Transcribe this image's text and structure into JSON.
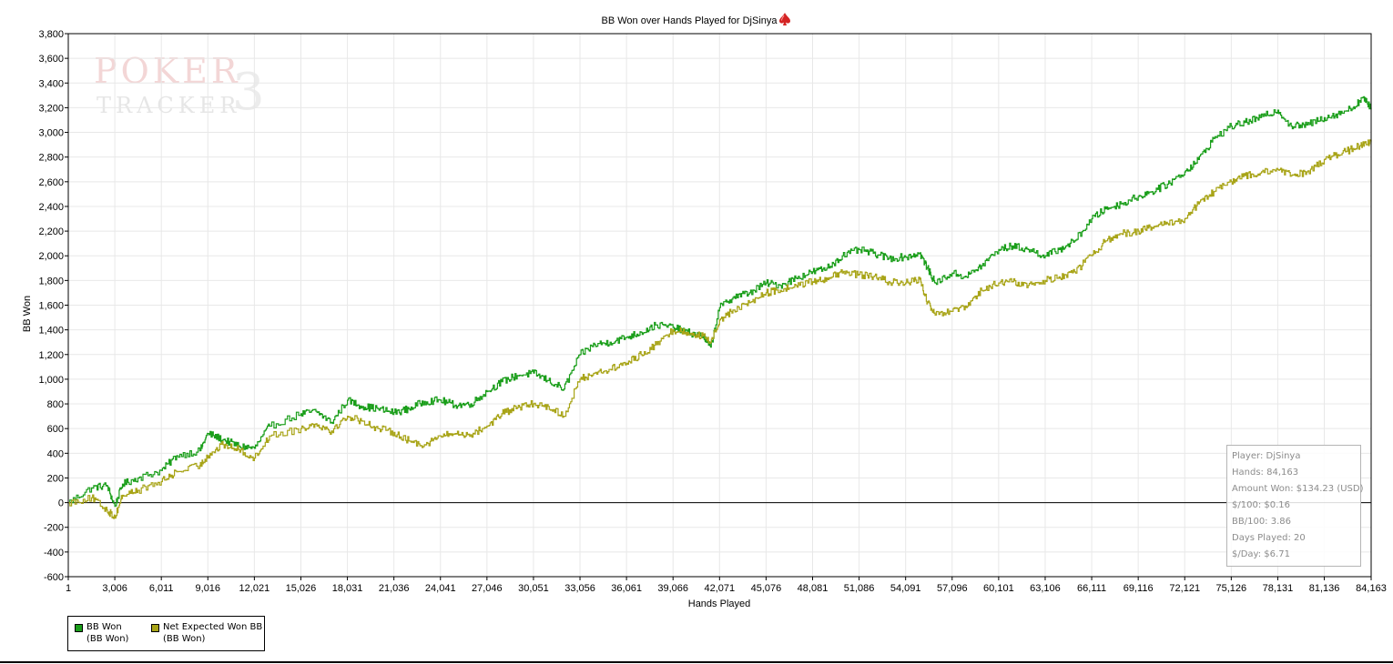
{
  "chart_data": {
    "type": "line",
    "title": "BB Won over Hands Played for DjSinya",
    "title_icon": "red-spade-icon",
    "xlabel": "Hands Played",
    "ylabel": "BB Won",
    "xlim": [
      1,
      84163
    ],
    "ylim": [
      -600,
      3800
    ],
    "x_ticks": [
      "1",
      "3,006",
      "6,011",
      "9,016",
      "12,021",
      "15,026",
      "18,031",
      "21,036",
      "24,041",
      "27,046",
      "30,051",
      "33,056",
      "36,061",
      "39,066",
      "42,071",
      "45,076",
      "48,081",
      "51,086",
      "54,091",
      "57,096",
      "60,101",
      "63,106",
      "66,111",
      "69,116",
      "72,121",
      "75,126",
      "78,131",
      "81,136",
      "84,163"
    ],
    "y_ticks": [
      "-600",
      "-400",
      "-200",
      "0",
      "200",
      "400",
      "600",
      "800",
      "1,000",
      "1,200",
      "1,400",
      "1,600",
      "1,800",
      "2,000",
      "2,200",
      "2,400",
      "2,600",
      "2,800",
      "3,000",
      "3,200",
      "3,400",
      "3,600",
      "3,800"
    ],
    "grid": true,
    "legend_position": "bottom-left",
    "series": [
      {
        "name": "BB Won",
        "unit": "(BB Won)",
        "color": "#1a9e1a",
        "x": [
          1,
          1500,
          2500,
          3006,
          3500,
          4500,
          6011,
          7000,
          8500,
          9016,
          10000,
          11000,
          12021,
          13000,
          15026,
          16000,
          17000,
          18031,
          19000,
          20000,
          21036,
          22000,
          23000,
          24041,
          25000,
          26000,
          27046,
          28000,
          29000,
          30051,
          31000,
          32000,
          33056,
          34000,
          35000,
          36061,
          37000,
          38000,
          39066,
          40000,
          41000,
          41500,
          42071,
          43000,
          44000,
          45076,
          46000,
          47000,
          48081,
          49000,
          50000,
          51086,
          52000,
          53000,
          54091,
          55000,
          55500,
          56000,
          57096,
          58000,
          59000,
          60101,
          61000,
          62000,
          63106,
          64000,
          65000,
          66111,
          67000,
          68000,
          69116,
          70000,
          71000,
          72121,
          73000,
          74000,
          75126,
          76000,
          77000,
          78131,
          79000,
          80000,
          81136,
          82000,
          83000,
          83600,
          84163
        ],
        "values": [
          0,
          120,
          140,
          -30,
          150,
          200,
          260,
          380,
          420,
          560,
          510,
          460,
          440,
          620,
          720,
          740,
          650,
          830,
          780,
          760,
          730,
          760,
          820,
          830,
          790,
          800,
          900,
          980,
          1030,
          1050,
          990,
          920,
          1200,
          1280,
          1300,
          1340,
          1380,
          1440,
          1420,
          1380,
          1350,
          1260,
          1580,
          1670,
          1700,
          1780,
          1760,
          1820,
          1870,
          1900,
          2000,
          2050,
          2020,
          1980,
          1990,
          2020,
          1900,
          1780,
          1860,
          1830,
          1920,
          2050,
          2080,
          2050,
          2000,
          2050,
          2120,
          2300,
          2380,
          2420,
          2480,
          2520,
          2580,
          2680,
          2780,
          2950,
          3050,
          3080,
          3120,
          3180,
          3050,
          3060,
          3120,
          3150,
          3200,
          3280,
          3200
        ]
      },
      {
        "name": "Net Expected Won BB",
        "unit": "(BB Won)",
        "color": "#a8a417",
        "x": [
          1,
          1500,
          2500,
          3006,
          3500,
          4500,
          6011,
          7000,
          8500,
          9016,
          10000,
          11000,
          12021,
          13000,
          15026,
          16000,
          17000,
          18031,
          19000,
          20000,
          21036,
          22000,
          23000,
          24041,
          25000,
          26000,
          27046,
          28000,
          29000,
          30051,
          31000,
          32000,
          33056,
          34000,
          35000,
          36061,
          37000,
          38000,
          39066,
          40000,
          41000,
          41500,
          42071,
          43000,
          44000,
          45076,
          46000,
          47000,
          48081,
          49000,
          50000,
          51086,
          52000,
          53000,
          54091,
          55000,
          55500,
          56000,
          57096,
          58000,
          59000,
          60101,
          61000,
          62000,
          63106,
          64000,
          65000,
          66111,
          67000,
          68000,
          69116,
          70000,
          71000,
          72121,
          73000,
          74000,
          75126,
          76000,
          77000,
          78131,
          79000,
          80000,
          81136,
          82000,
          83000,
          83600,
          84163
        ],
        "values": [
          0,
          40,
          -60,
          -120,
          60,
          100,
          170,
          250,
          300,
          380,
          470,
          430,
          360,
          540,
          600,
          640,
          580,
          700,
          660,
          600,
          570,
          500,
          470,
          540,
          560,
          550,
          620,
          720,
          770,
          800,
          780,
          700,
          1000,
          1050,
          1080,
          1130,
          1200,
          1280,
          1400,
          1380,
          1350,
          1300,
          1480,
          1560,
          1620,
          1700,
          1720,
          1760,
          1790,
          1820,
          1860,
          1850,
          1830,
          1790,
          1780,
          1810,
          1620,
          1520,
          1550,
          1580,
          1720,
          1780,
          1790,
          1760,
          1800,
          1830,
          1870,
          2000,
          2120,
          2180,
          2200,
          2230,
          2260,
          2300,
          2420,
          2520,
          2600,
          2650,
          2670,
          2700,
          2650,
          2680,
          2780,
          2820,
          2870,
          2900,
          2920
        ]
      }
    ]
  },
  "watermark": {
    "line1": "POKER",
    "digit": "3",
    "line2": "TRACKER"
  },
  "stats": {
    "player": "Player: DjSinya",
    "hands": "Hands: 84,163",
    "amount_won": "Amount Won: $134.23 (USD)",
    "dollars_per_100": "$/100: $0.16",
    "bb_per_100": "BB/100: 3.86",
    "days_played": "Days Played: 20",
    "dollars_per_day": "$/Day: $6.71"
  }
}
